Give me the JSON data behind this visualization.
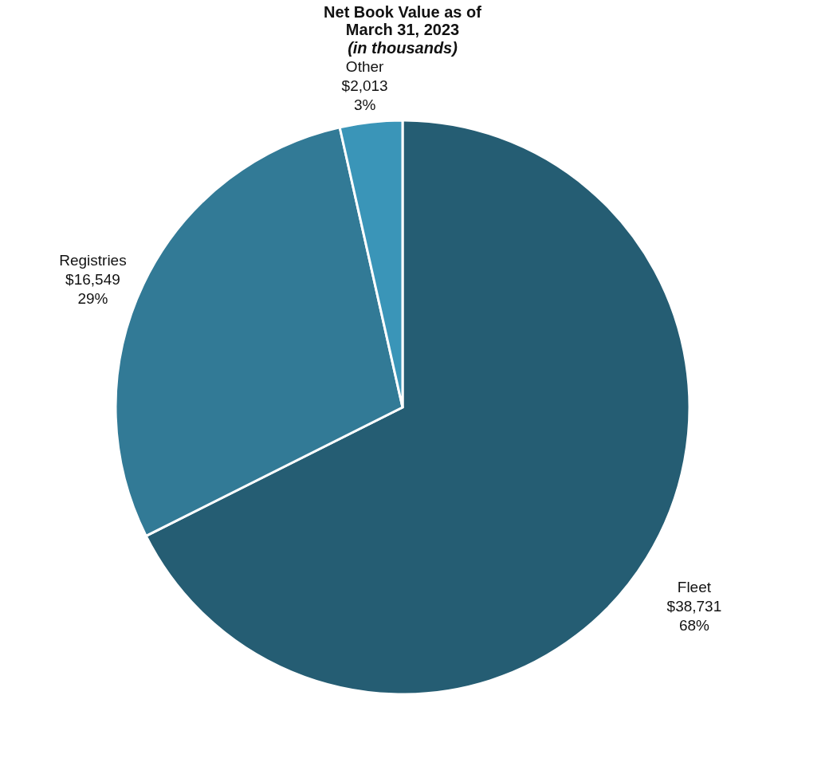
{
  "chart_data": {
    "type": "pie",
    "title": "Net Book Value as of\nMarch 31, 2023",
    "subtitle": "(in thousands)",
    "categories": [
      "Fleet",
      "Registries",
      "Other"
    ],
    "values": [
      38731,
      16549,
      2013
    ],
    "colors": [
      "#255d73",
      "#327a96",
      "#3a95b8"
    ],
    "value_labels": [
      "$38,731\n68%",
      "$16,549\n29%",
      "$2,013\n3%"
    ],
    "legend": false
  }
}
